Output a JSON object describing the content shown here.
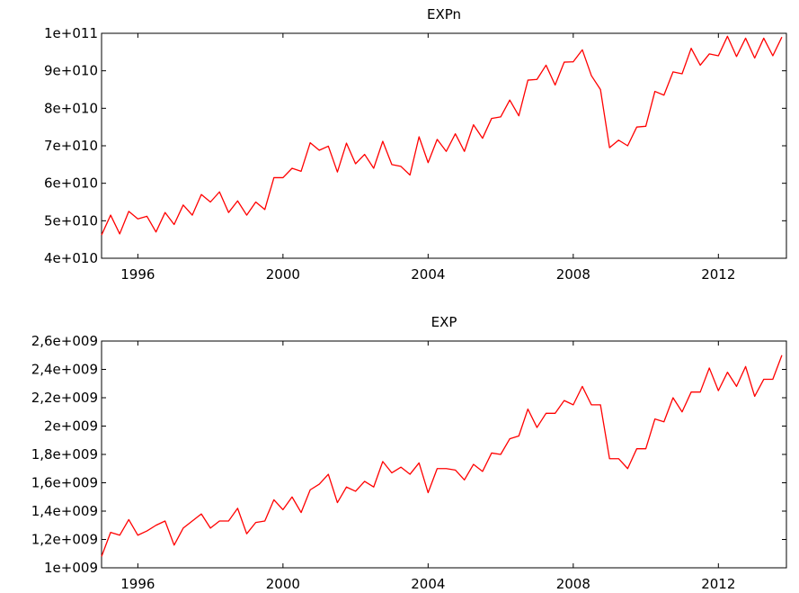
{
  "chart_data": [
    {
      "type": "line",
      "title": "EXPn",
      "xlim": [
        1995.0,
        2013.875
      ],
      "ylim": [
        40000000000,
        100000000000
      ],
      "yticks": [
        40000000000,
        50000000000,
        60000000000,
        70000000000,
        80000000000,
        90000000000,
        100000000000
      ],
      "ytick_labels": [
        "4e+010",
        "5e+010",
        "6e+010",
        "7e+010",
        "8e+010",
        "9e+010",
        "1e+011"
      ],
      "xticks": [
        1996,
        2000,
        2004,
        2008,
        2012
      ],
      "xtick_labels": [
        "1996",
        "2000",
        "2004",
        "2008",
        "2012"
      ],
      "grid": false,
      "color": "#ff0000",
      "series": [
        {
          "x": [
            1995.0,
            1995.25,
            1995.5,
            1995.75,
            1996.0,
            1996.25,
            1996.5,
            1996.75,
            1997.0,
            1997.25,
            1997.5,
            1997.75,
            1998.0,
            1998.25,
            1998.5,
            1998.75,
            1999.0,
            1999.25,
            1999.5,
            1999.75,
            2000.0,
            2000.25,
            2000.5,
            2000.75,
            2001.0,
            2001.25,
            2001.5,
            2001.75,
            2002.0,
            2002.25,
            2002.5,
            2002.75,
            2003.0,
            2003.25,
            2003.5,
            2003.75,
            2004.0,
            2004.25,
            2004.5,
            2004.75,
            2005.0,
            2005.25,
            2005.5,
            2005.75,
            2006.0,
            2006.25,
            2006.5,
            2006.75,
            2007.0,
            2007.25,
            2007.5,
            2007.75,
            2008.0,
            2008.25,
            2008.5,
            2008.75,
            2009.0,
            2009.25,
            2009.5,
            2009.75,
            2010.0,
            2010.25,
            2010.5,
            2010.75,
            2011.0,
            2011.25,
            2011.5,
            2011.75,
            2012.0,
            2012.25,
            2012.5,
            2012.75,
            2013.0,
            2013.25,
            2013.5,
            2013.75
          ],
          "values": [
            46200000000,
            51500000000,
            46500000000,
            52500000000,
            50500000000,
            51200000000,
            47000000000,
            52200000000,
            49000000000,
            54200000000,
            51500000000,
            57000000000,
            55000000000,
            57700000000,
            52200000000,
            55300000000,
            51500000000,
            55000000000,
            53000000000,
            61500000000,
            61500000000,
            64000000000,
            63200000000,
            70800000000,
            68800000000,
            69900000000,
            63000000000,
            70700000000,
            65200000000,
            67700000000,
            64000000000,
            71200000000,
            65000000000,
            64500000000,
            62200000000,
            72400000000,
            65500000000,
            71700000000,
            68500000000,
            73200000000,
            68500000000,
            75600000000,
            72000000000,
            77300000000,
            77700000000,
            82200000000,
            78000000000,
            87500000000,
            87700000000,
            91500000000,
            86200000000,
            92300000000,
            92400000000,
            95600000000,
            88700000000,
            85000000000,
            69500000000,
            71500000000,
            70000000000,
            75000000000,
            75200000000,
            84500000000,
            83500000000,
            89700000000,
            89200000000,
            96000000000,
            91500000000,
            94500000000,
            94000000000,
            99200000000,
            93800000000,
            98700000000,
            93400000000,
            98700000000,
            94000000000,
            99000000000
          ]
        }
      ]
    },
    {
      "type": "line",
      "title": "EXP",
      "xlim": [
        1995.0,
        2013.875
      ],
      "ylim": [
        1000000000,
        2600000000
      ],
      "yticks": [
        1000000000,
        1200000000,
        1400000000,
        1600000000,
        1800000000,
        2000000000,
        2200000000,
        2400000000,
        2600000000
      ],
      "ytick_labels": [
        "1e+009",
        "1,2e+009",
        "1,4e+009",
        "1,6e+009",
        "1,8e+009",
        "2e+009",
        "2,2e+009",
        "2,4e+009",
        "2,6e+009"
      ],
      "xticks": [
        1996,
        2000,
        2004,
        2008,
        2012
      ],
      "xtick_labels": [
        "1996",
        "2000",
        "2004",
        "2008",
        "2012"
      ],
      "grid": false,
      "color": "#ff0000",
      "series": [
        {
          "x": [
            1995.0,
            1995.25,
            1995.5,
            1995.75,
            1996.0,
            1996.25,
            1996.5,
            1996.75,
            1997.0,
            1997.25,
            1997.5,
            1997.75,
            1998.0,
            1998.25,
            1998.5,
            1998.75,
            1999.0,
            1999.25,
            1999.5,
            1999.75,
            2000.0,
            2000.25,
            2000.5,
            2000.75,
            2001.0,
            2001.25,
            2001.5,
            2001.75,
            2002.0,
            2002.25,
            2002.5,
            2002.75,
            2003.0,
            2003.25,
            2003.5,
            2003.75,
            2004.0,
            2004.25,
            2004.5,
            2004.75,
            2005.0,
            2005.25,
            2005.5,
            2005.75,
            2006.0,
            2006.25,
            2006.5,
            2006.75,
            2007.0,
            2007.25,
            2007.5,
            2007.75,
            2008.0,
            2008.25,
            2008.5,
            2008.75,
            2009.0,
            2009.25,
            2009.5,
            2009.75,
            2010.0,
            2010.25,
            2010.5,
            2010.75,
            2011.0,
            2011.25,
            2011.5,
            2011.75,
            2012.0,
            2012.25,
            2012.5,
            2012.75,
            2013.0,
            2013.25,
            2013.5,
            2013.75
          ],
          "values": [
            1080000000,
            1250000000,
            1230000000,
            1340000000,
            1230000000,
            1260000000,
            1300000000,
            1330000000,
            1160000000,
            1280000000,
            1330000000,
            1380000000,
            1280000000,
            1330000000,
            1330000000,
            1420000000,
            1240000000,
            1320000000,
            1330000000,
            1480000000,
            1410000000,
            1500000000,
            1390000000,
            1550000000,
            1590000000,
            1660000000,
            1460000000,
            1570000000,
            1540000000,
            1610000000,
            1570000000,
            1750000000,
            1670000000,
            1710000000,
            1660000000,
            1740000000,
            1530000000,
            1700000000,
            1700000000,
            1690000000,
            1620000000,
            1730000000,
            1680000000,
            1810000000,
            1800000000,
            1910000000,
            1930000000,
            2120000000,
            1990000000,
            2090000000,
            2090000000,
            2180000000,
            2150000000,
            2280000000,
            2150000000,
            2150000000,
            1770000000,
            1770000000,
            1700000000,
            1840000000,
            1840000000,
            2050000000,
            2030000000,
            2200000000,
            2100000000,
            2240000000,
            2240000000,
            2410000000,
            2250000000,
            2380000000,
            2280000000,
            2420000000,
            2210000000,
            2330000000,
            2330000000,
            2500000000
          ]
        }
      ]
    }
  ]
}
